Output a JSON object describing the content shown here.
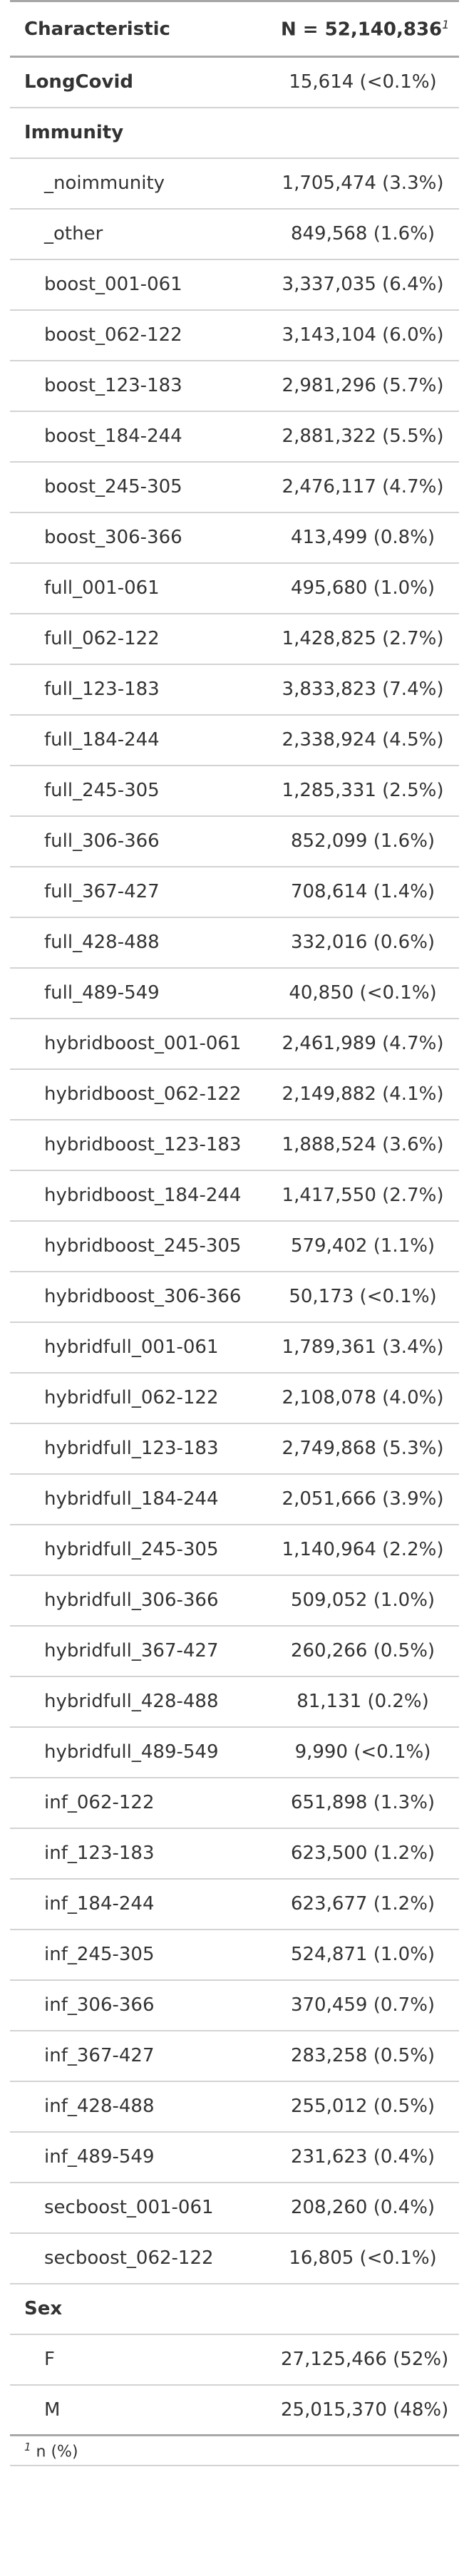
{
  "header": {
    "characteristic": "Characteristic",
    "n_label": "N = 52,140,836",
    "n_footnote_marker": "1"
  },
  "rows": [
    {
      "label": "LongCovid",
      "value": "15,614 (<0.1%)",
      "level": "top"
    },
    {
      "label": "Immunity",
      "value": "",
      "level": "top"
    },
    {
      "label": "_noimmunity",
      "value": "1,705,474 (3.3%)",
      "level": "sub"
    },
    {
      "label": "_other",
      "value": "849,568 (1.6%)",
      "level": "sub"
    },
    {
      "label": "boost_001-061",
      "value": "3,337,035 (6.4%)",
      "level": "sub"
    },
    {
      "label": "boost_062-122",
      "value": "3,143,104 (6.0%)",
      "level": "sub"
    },
    {
      "label": "boost_123-183",
      "value": "2,981,296 (5.7%)",
      "level": "sub"
    },
    {
      "label": "boost_184-244",
      "value": "2,881,322 (5.5%)",
      "level": "sub"
    },
    {
      "label": "boost_245-305",
      "value": "2,476,117 (4.7%)",
      "level": "sub"
    },
    {
      "label": "boost_306-366",
      "value": "413,499 (0.8%)",
      "level": "sub"
    },
    {
      "label": "full_001-061",
      "value": "495,680 (1.0%)",
      "level": "sub"
    },
    {
      "label": "full_062-122",
      "value": "1,428,825 (2.7%)",
      "level": "sub"
    },
    {
      "label": "full_123-183",
      "value": "3,833,823 (7.4%)",
      "level": "sub"
    },
    {
      "label": "full_184-244",
      "value": "2,338,924 (4.5%)",
      "level": "sub"
    },
    {
      "label": "full_245-305",
      "value": "1,285,331 (2.5%)",
      "level": "sub"
    },
    {
      "label": "full_306-366",
      "value": "852,099 (1.6%)",
      "level": "sub"
    },
    {
      "label": "full_367-427",
      "value": "708,614 (1.4%)",
      "level": "sub"
    },
    {
      "label": "full_428-488",
      "value": "332,016 (0.6%)",
      "level": "sub"
    },
    {
      "label": "full_489-549",
      "value": "40,850 (<0.1%)",
      "level": "sub"
    },
    {
      "label": "hybridboost_001-061",
      "value": "2,461,989 (4.7%)",
      "level": "sub"
    },
    {
      "label": "hybridboost_062-122",
      "value": "2,149,882 (4.1%)",
      "level": "sub"
    },
    {
      "label": "hybridboost_123-183",
      "value": "1,888,524 (3.6%)",
      "level": "sub"
    },
    {
      "label": "hybridboost_184-244",
      "value": "1,417,550 (2.7%)",
      "level": "sub"
    },
    {
      "label": "hybridboost_245-305",
      "value": "579,402 (1.1%)",
      "level": "sub"
    },
    {
      "label": "hybridboost_306-366",
      "value": "50,173 (<0.1%)",
      "level": "sub"
    },
    {
      "label": "hybridfull_001-061",
      "value": "1,789,361 (3.4%)",
      "level": "sub"
    },
    {
      "label": "hybridfull_062-122",
      "value": "2,108,078 (4.0%)",
      "level": "sub"
    },
    {
      "label": "hybridfull_123-183",
      "value": "2,749,868 (5.3%)",
      "level": "sub"
    },
    {
      "label": "hybridfull_184-244",
      "value": "2,051,666 (3.9%)",
      "level": "sub"
    },
    {
      "label": "hybridfull_245-305",
      "value": "1,140,964 (2.2%)",
      "level": "sub"
    },
    {
      "label": "hybridfull_306-366",
      "value": "509,052 (1.0%)",
      "level": "sub"
    },
    {
      "label": "hybridfull_367-427",
      "value": "260,266 (0.5%)",
      "level": "sub"
    },
    {
      "label": "hybridfull_428-488",
      "value": "81,131 (0.2%)",
      "level": "sub"
    },
    {
      "label": "hybridfull_489-549",
      "value": "9,990 (<0.1%)",
      "level": "sub"
    },
    {
      "label": "inf_062-122",
      "value": "651,898 (1.3%)",
      "level": "sub"
    },
    {
      "label": "inf_123-183",
      "value": "623,500 (1.2%)",
      "level": "sub"
    },
    {
      "label": "inf_184-244",
      "value": "623,677 (1.2%)",
      "level": "sub"
    },
    {
      "label": "inf_245-305",
      "value": "524,871 (1.0%)",
      "level": "sub"
    },
    {
      "label": "inf_306-366",
      "value": "370,459 (0.7%)",
      "level": "sub"
    },
    {
      "label": "inf_367-427",
      "value": "283,258 (0.5%)",
      "level": "sub"
    },
    {
      "label": "inf_428-488",
      "value": "255,012 (0.5%)",
      "level": "sub"
    },
    {
      "label": "inf_489-549",
      "value": "231,623 (0.4%)",
      "level": "sub"
    },
    {
      "label": "secboost_001-061",
      "value": "208,260 (0.4%)",
      "level": "sub"
    },
    {
      "label": "secboost_062-122",
      "value": "16,805 (<0.1%)",
      "level": "sub"
    },
    {
      "label": "Sex",
      "value": "",
      "level": "top"
    },
    {
      "label": "F",
      "value": "27,125,466 (52%)",
      "level": "sub"
    },
    {
      "label": "M",
      "value": "25,015,370 (48%)",
      "level": "sub"
    }
  ],
  "footnote": {
    "marker": "1",
    "text": " n (%)"
  },
  "colors": {
    "text": "#333333",
    "rule_strong": "#a8a8a8",
    "rule_light": "#d3d3d3",
    "background": "#ffffff"
  }
}
